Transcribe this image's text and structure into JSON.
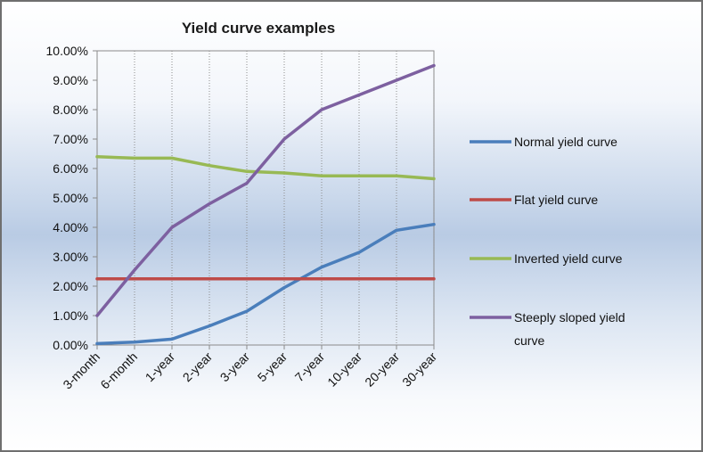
{
  "chart_data": {
    "type": "line",
    "title": "Yield curve examples",
    "xlabel": "",
    "ylabel": "",
    "categories": [
      "3-month",
      "6-month",
      "1-year",
      "2-year",
      "3-year",
      "5-year",
      "7-year",
      "10-year",
      "20-year",
      "30-year"
    ],
    "ylim": [
      0,
      10
    ],
    "yticks": [
      "0.00%",
      "1.00%",
      "2.00%",
      "3.00%",
      "4.00%",
      "5.00%",
      "6.00%",
      "7.00%",
      "8.00%",
      "9.00%",
      "10.00%"
    ],
    "grid": {
      "vertical": true,
      "horizontal": false,
      "style": "dotted"
    },
    "legend_position": "right",
    "series": [
      {
        "name": "Normal yield curve",
        "color": "#4a7ebb",
        "values": [
          0.05,
          0.1,
          0.2,
          0.65,
          1.15,
          1.95,
          2.65,
          3.15,
          3.9,
          4.1
        ]
      },
      {
        "name": "Flat yield curve",
        "color": "#be4b48",
        "values": [
          2.25,
          2.25,
          2.25,
          2.25,
          2.25,
          2.25,
          2.25,
          2.25,
          2.25,
          2.25
        ]
      },
      {
        "name": "Inverted yield curve",
        "color": "#98b954",
        "values": [
          6.4,
          6.35,
          6.35,
          6.1,
          5.9,
          5.85,
          5.75,
          5.75,
          5.75,
          5.65
        ]
      },
      {
        "name": "Steeply sloped yield curve",
        "color": "#7d60a0",
        "values": [
          1.0,
          2.55,
          4.0,
          4.8,
          5.5,
          7.0,
          8.0,
          8.5,
          9.0,
          9.5
        ]
      }
    ]
  }
}
